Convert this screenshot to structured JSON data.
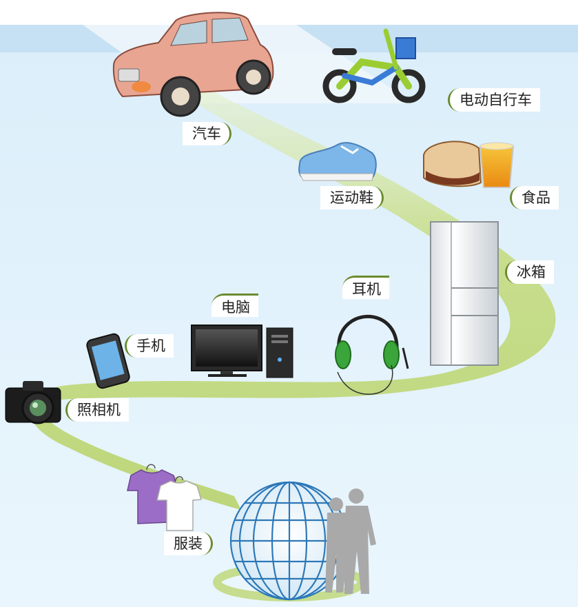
{
  "labels": {
    "car": "汽车",
    "ebike": "电动自行车",
    "sneaker": "运动鞋",
    "food": "食品",
    "fridge": "冰箱",
    "earphones": "耳机",
    "computer": "电脑",
    "phone": "手机",
    "camera": "照相机",
    "clothing": "服装"
  },
  "colors": {
    "sky_top": "#c9e3f5",
    "sky_bottom": "#e7f4fc",
    "path": "#c6dc8e",
    "label_border": "#6a8a2e"
  }
}
